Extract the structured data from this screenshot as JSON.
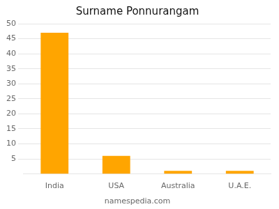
{
  "chart_data": {
    "type": "bar",
    "title": "Surname Ponnurangam",
    "footer": "namespedia.com",
    "categories": [
      "India",
      "USA",
      "Australia",
      "U.A.E."
    ],
    "values": [
      47,
      6,
      1,
      1
    ],
    "color": "#FFA500",
    "ylim": [
      0,
      50
    ],
    "yticks": [
      5,
      10,
      15,
      20,
      25,
      30,
      35,
      40,
      45,
      50
    ],
    "grid": true
  }
}
